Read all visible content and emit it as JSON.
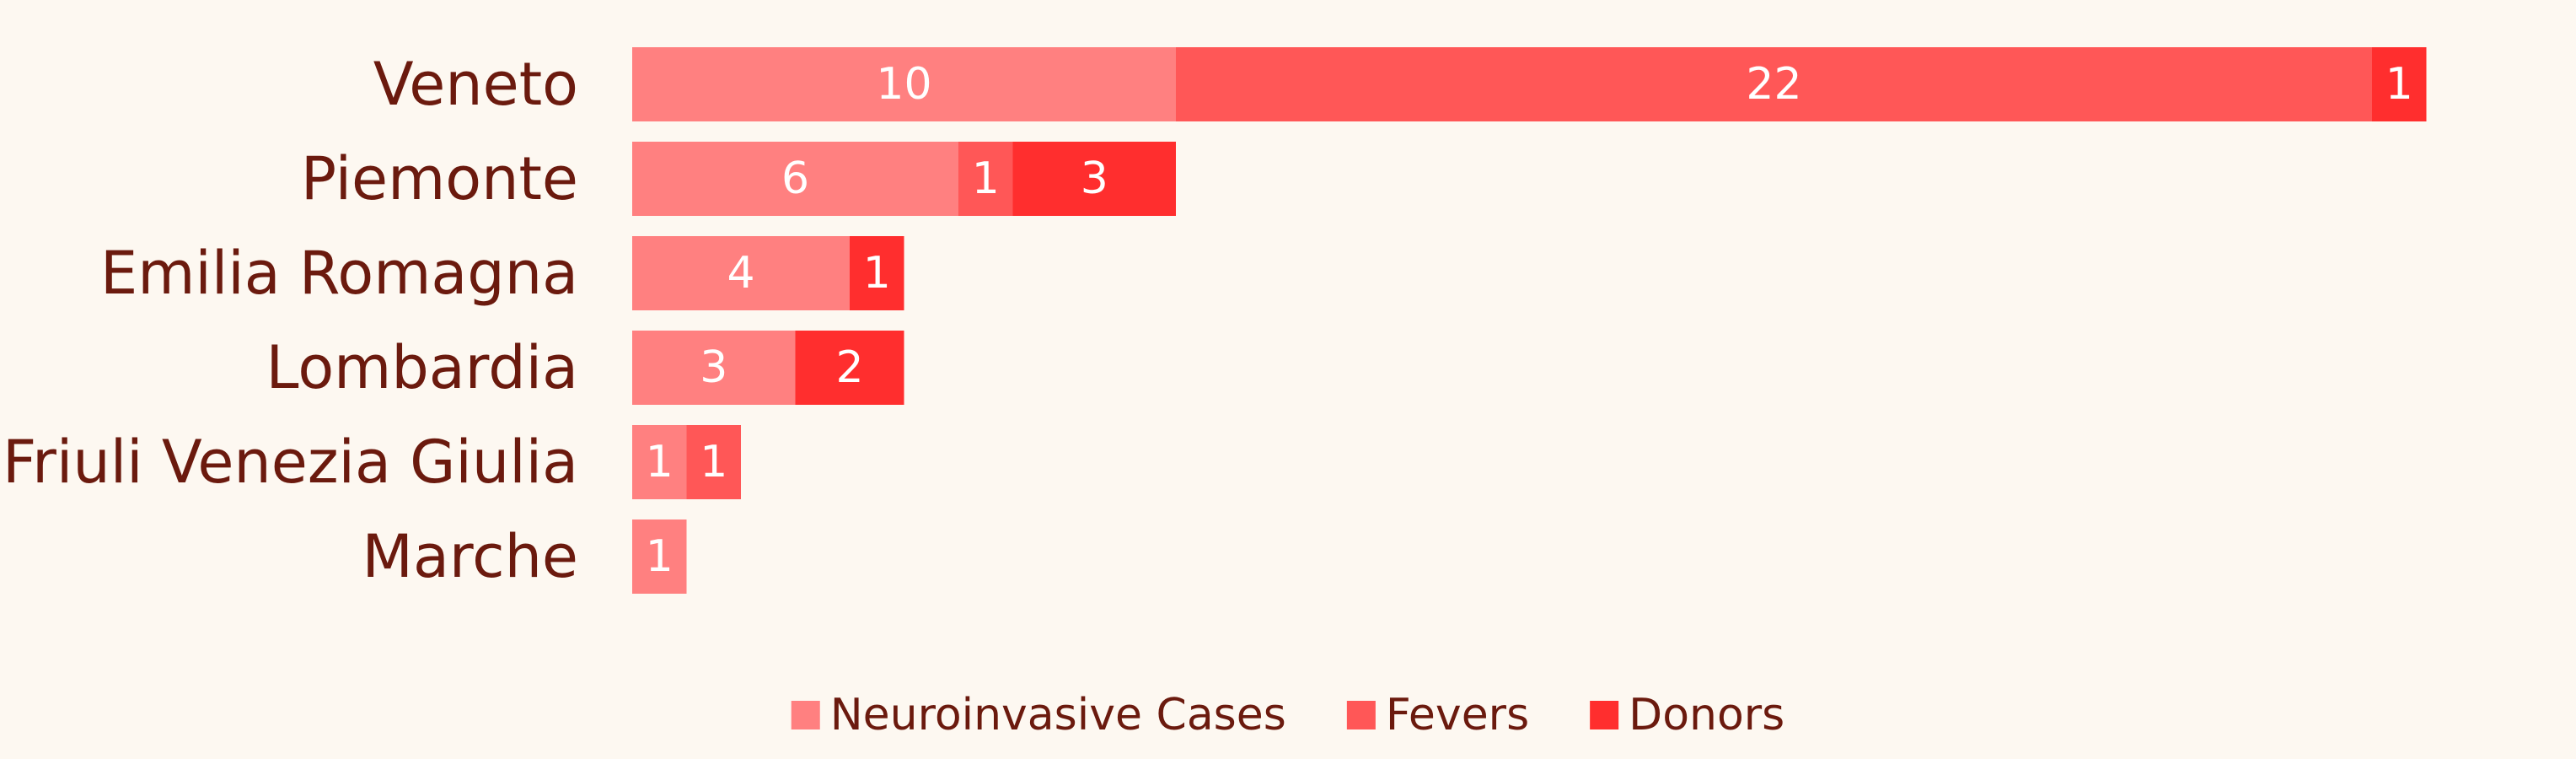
{
  "chart_data": {
    "type": "bar",
    "orientation": "horizontal",
    "stacked": true,
    "categories": [
      "Veneto",
      "Piemonte",
      "Emilia Romagna",
      "Lombardia",
      "Friuli Venezia Giulia",
      "Marche"
    ],
    "series": [
      {
        "name": "Neuroinvasive Cases",
        "values": [
          10,
          6,
          4,
          3,
          1,
          1
        ],
        "color": "#ff8080"
      },
      {
        "name": "Fevers",
        "values": [
          22,
          1,
          0,
          0,
          1,
          0
        ],
        "color": "#ff5757"
      },
      {
        "name": "Donors",
        "values": [
          1,
          3,
          1,
          2,
          0,
          0
        ],
        "color": "#ff2e2e"
      }
    ],
    "title": "",
    "xlabel": "",
    "ylabel": "",
    "xlim": [
      0,
      33
    ],
    "grid": false,
    "legend_position": "bottom",
    "show_value_labels": true
  },
  "colors": {
    "background": "#fdf8f1",
    "label_text": "#6b1a0e",
    "value_text": "#ffffff"
  }
}
